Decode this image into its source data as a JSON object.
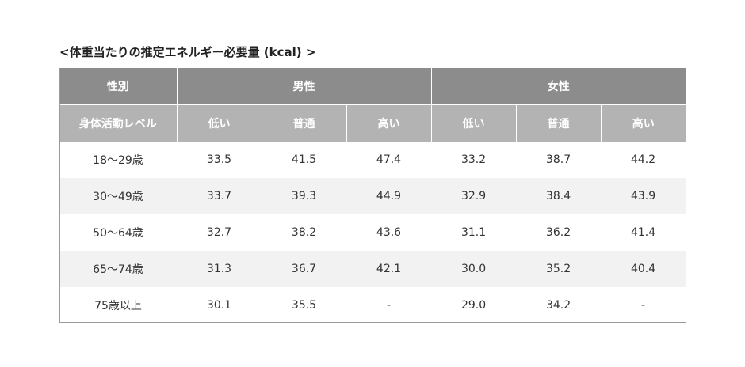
{
  "title": "<体重当たりの推定エネルギー必要量 (kcal) >",
  "header": {
    "col0": "性別",
    "male": "男性",
    "female": "女性",
    "activity": "身体活動レベル",
    "levels": [
      "低い",
      "普通",
      "高い",
      "低い",
      "普通",
      "高い"
    ]
  },
  "rows": [
    {
      "age": "18〜29歳",
      "values": [
        "33.5",
        "41.5",
        "47.4",
        "33.2",
        "38.7",
        "44.2"
      ]
    },
    {
      "age": "30〜49歳",
      "values": [
        "33.7",
        "39.3",
        "44.9",
        "32.9",
        "38.4",
        "43.9"
      ]
    },
    {
      "age": "50〜64歳",
      "values": [
        "32.7",
        "38.2",
        "43.6",
        "31.1",
        "36.2",
        "41.4"
      ]
    },
    {
      "age": "65〜74歳",
      "values": [
        "31.3",
        "36.7",
        "42.1",
        "30.0",
        "35.2",
        "40.4"
      ]
    },
    {
      "age": "75歳以上",
      "values": [
        "30.1",
        "35.5",
        "-",
        "29.0",
        "34.2",
        "-"
      ]
    }
  ],
  "colors": {
    "header_dark": "#8c8c8c",
    "header_light": "#b3b3b3",
    "row_alt": "#f2f2f2",
    "border": "#9a9a9a"
  }
}
